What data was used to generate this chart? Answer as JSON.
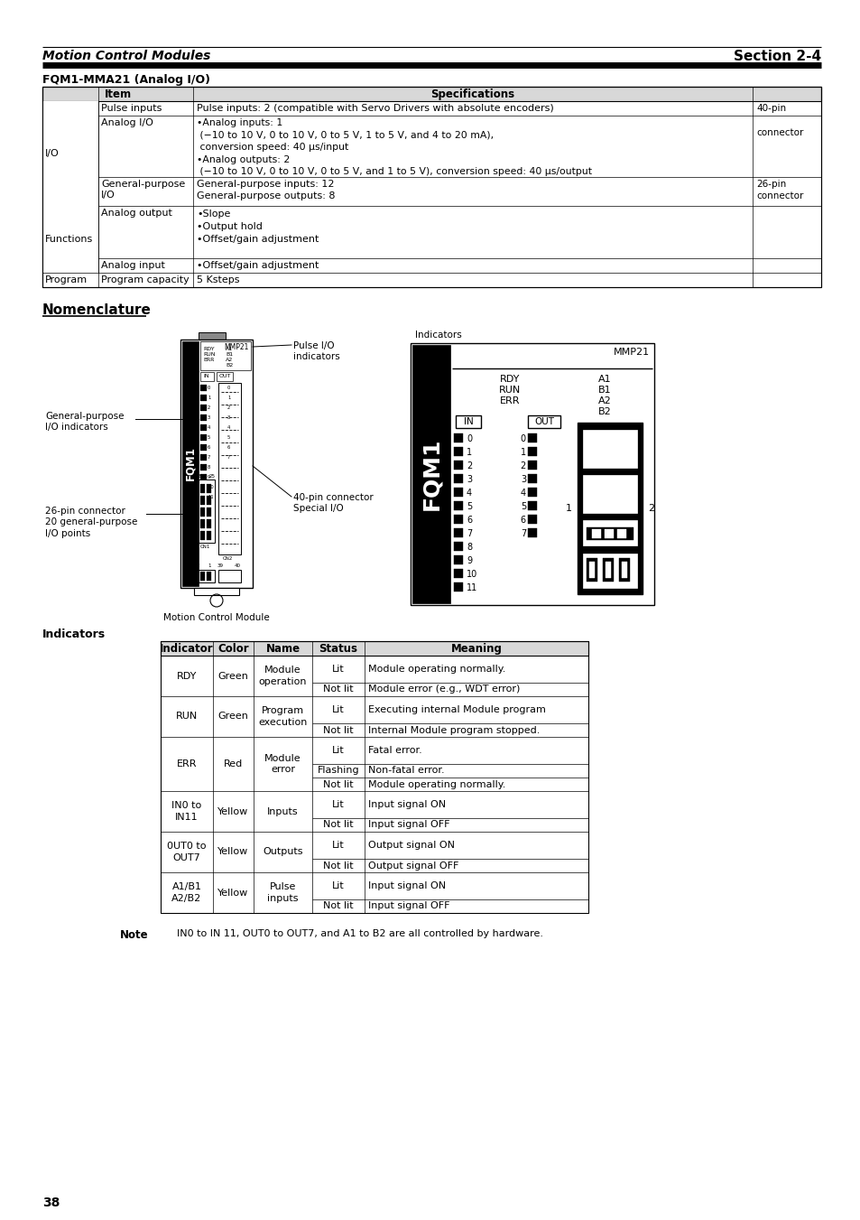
{
  "page_bg": "#ffffff",
  "header_italic": "Motion Control Modules",
  "header_right": "Section 2-4",
  "section_title": "FQM1-MMA21 (Analog I/O)",
  "nomenclature_title": "Nomenclature",
  "indicators_title": "Indicators",
  "table2_headers": [
    "Indicator",
    "Color",
    "Name",
    "Status",
    "Meaning"
  ],
  "table2_rows": [
    [
      "RDY",
      "Green",
      "Module\noperation",
      "Lit",
      "Module operating normally."
    ],
    [
      "",
      "",
      "",
      "Not lit",
      "Module error (e.g., WDT error)"
    ],
    [
      "RUN",
      "Green",
      "Program\nexecution",
      "Lit",
      "Executing internal Module program"
    ],
    [
      "",
      "",
      "",
      "Not lit",
      "Internal Module program stopped."
    ],
    [
      "ERR",
      "Red",
      "Module\nerror",
      "Lit",
      "Fatal error."
    ],
    [
      "",
      "",
      "",
      "Flashing",
      "Non-fatal error."
    ],
    [
      "",
      "",
      "",
      "Not lit",
      "Module operating normally."
    ],
    [
      "IN0 to\nIN11",
      "Yellow",
      "Inputs",
      "Lit",
      "Input signal ON"
    ],
    [
      "",
      "",
      "",
      "Not lit",
      "Input signal OFF"
    ],
    [
      "0UT0 to\nOUT7",
      "Yellow",
      "Outputs",
      "Lit",
      "Output signal ON"
    ],
    [
      "",
      "",
      "",
      "Not lit",
      "Output signal OFF"
    ],
    [
      "A1/B1\nA2/B2",
      "Yellow",
      "Pulse\ninputs",
      "Lit",
      "Input signal ON"
    ],
    [
      "",
      "",
      "",
      "Not lit",
      "Input signal OFF"
    ]
  ],
  "note_label": "Note",
  "note_text": "IN0 to IN 11, OUT0 to OUT7, and A1 to B2 are all controlled by hardware.",
  "page_number": "38",
  "motion_control_label": "Motion Control Module"
}
